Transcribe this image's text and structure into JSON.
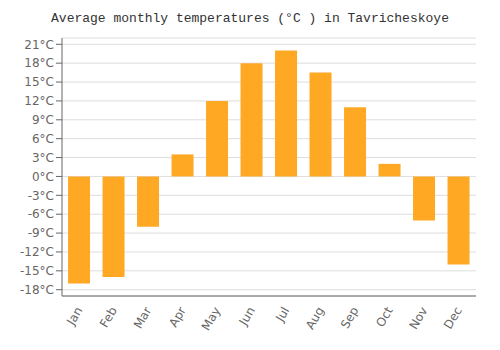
{
  "chart_data": {
    "type": "bar",
    "title": "Average monthly temperatures (°C ) in Tavricheskoye",
    "categories": [
      "Jan",
      "Feb",
      "Mar",
      "Apr",
      "May",
      "Jun",
      "Jul",
      "Aug",
      "Sep",
      "Oct",
      "Nov",
      "Dec"
    ],
    "values": [
      -17,
      -16,
      -8,
      3.5,
      12,
      18,
      20,
      16.5,
      11,
      2,
      -7,
      -14
    ],
    "color": "#FFA824",
    "ylim": [
      -19,
      22
    ],
    "yticks": [
      {
        "value": -18,
        "label": "-18°C"
      },
      {
        "value": -15,
        "label": "-15°C"
      },
      {
        "value": -12,
        "label": "-12°C"
      },
      {
        "value": -9,
        "label": "-9°C"
      },
      {
        "value": -6,
        "label": "-6°C"
      },
      {
        "value": -3,
        "label": "-3°C"
      },
      {
        "value": 0,
        "label": "0°C"
      },
      {
        "value": 3,
        "label": "3°C"
      },
      {
        "value": 6,
        "label": "6°C"
      },
      {
        "value": 9,
        "label": "9°C"
      },
      {
        "value": 12,
        "label": "12°C"
      },
      {
        "value": 15,
        "label": "15°C"
      },
      {
        "value": 18,
        "label": "18°C"
      },
      {
        "value": 21,
        "label": "21°C"
      }
    ],
    "grid": true
  }
}
